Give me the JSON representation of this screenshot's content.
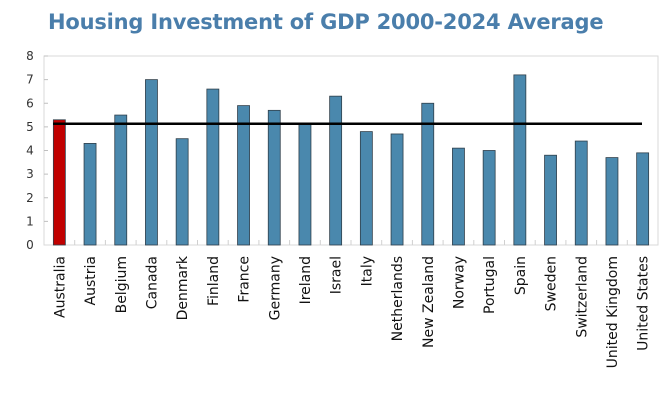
{
  "chart_data": {
    "type": "bar",
    "title": "Housing Investment of GDP 2000-2024 Average",
    "xlabel": "",
    "ylabel": "",
    "ylim": [
      0,
      8
    ],
    "yticks": [
      "0",
      "1",
      "2",
      "3",
      "4",
      "5",
      "6",
      "7",
      "8"
    ],
    "grid": false,
    "categories": [
      "Australia",
      "Austria",
      "Belgium",
      "Canada",
      "Denmark",
      "Finland",
      "France",
      "Germany",
      "Ireland",
      "Israel",
      "Italy",
      "Netherlands",
      "New Zealand",
      "Norway",
      "Portugal",
      "Spain",
      "Sweden",
      "Switzerland",
      "United Kingdom",
      "United States"
    ],
    "values": [
      5.3,
      4.3,
      5.5,
      7.0,
      4.5,
      6.6,
      5.9,
      5.7,
      5.1,
      6.3,
      4.8,
      4.7,
      6.0,
      4.1,
      4.0,
      7.2,
      3.8,
      4.4,
      3.7,
      3.9
    ],
    "reference_line": {
      "value": 5.13,
      "color": "#000000"
    },
    "colors": {
      "default": "#4a88ad",
      "highlight": "#c00000",
      "highlight_category": "Australia"
    }
  }
}
